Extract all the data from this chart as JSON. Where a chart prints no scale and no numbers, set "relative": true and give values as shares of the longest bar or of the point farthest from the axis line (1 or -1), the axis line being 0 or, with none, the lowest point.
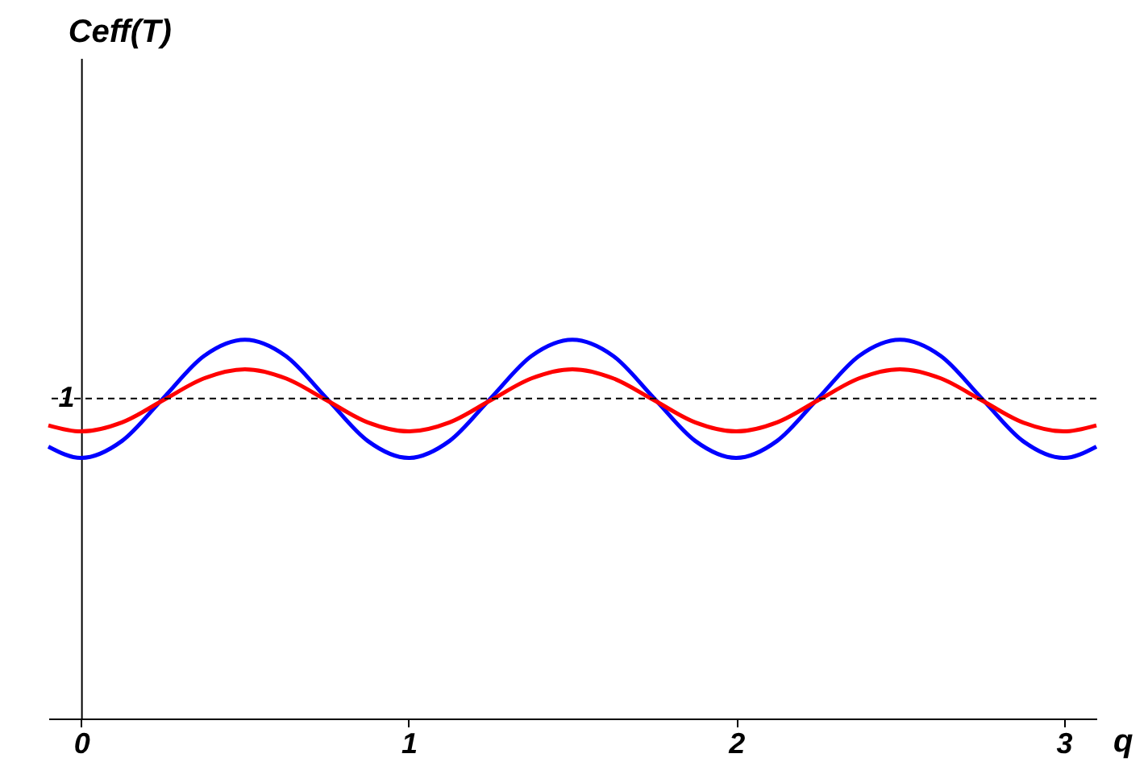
{
  "chart_data": {
    "type": "line",
    "relative": true,
    "xlabel": "q",
    "annotations": [
      "Ceff(T)"
    ],
    "xlim": [
      -0.1,
      3.1
    ],
    "xticks": [
      0,
      1,
      2,
      3
    ],
    "series": [
      {
        "color": "#0000ff",
        "x": [
          -0.1,
          0,
          0.125,
          0.25,
          0.375,
          0.5,
          0.625,
          0.75,
          0.875,
          1,
          1.125,
          1.25,
          1.375,
          1.5,
          1.625,
          1.75,
          1.875,
          2,
          2.125,
          2.25,
          2.375,
          2.5,
          2.625,
          2.75,
          2.875,
          3,
          3.1
        ],
        "values": [
          0.718,
          0.688,
          0.733,
          0.845,
          0.957,
          1.0,
          0.957,
          0.845,
          0.733,
          0.688,
          0.733,
          0.845,
          0.957,
          1.0,
          0.957,
          0.845,
          0.733,
          0.688,
          0.733,
          0.845,
          0.957,
          1.0,
          0.957,
          0.845,
          0.733,
          0.688,
          0.718
        ]
      },
      {
        "color": "#ff0000",
        "x": [
          -0.1,
          0,
          0.125,
          0.25,
          0.375,
          0.5,
          0.625,
          0.75,
          0.875,
          1,
          1.125,
          1.25,
          1.375,
          1.5,
          1.625,
          1.75,
          1.875,
          2,
          2.125,
          2.25,
          2.375,
          2.5,
          2.625,
          2.75,
          2.875,
          3,
          3.1
        ],
        "values": [
          0.774,
          0.758,
          0.782,
          0.84,
          0.898,
          0.922,
          0.898,
          0.84,
          0.782,
          0.758,
          0.782,
          0.84,
          0.898,
          0.922,
          0.898,
          0.84,
          0.782,
          0.758,
          0.782,
          0.84,
          0.898,
          0.922,
          0.898,
          0.84,
          0.782,
          0.758,
          0.774
        ]
      }
    ],
    "ref_lines": [
      {
        "axis": "y",
        "value": 0.845,
        "label": "1",
        "color": "#000000",
        "line_style": "dashed"
      }
    ]
  }
}
